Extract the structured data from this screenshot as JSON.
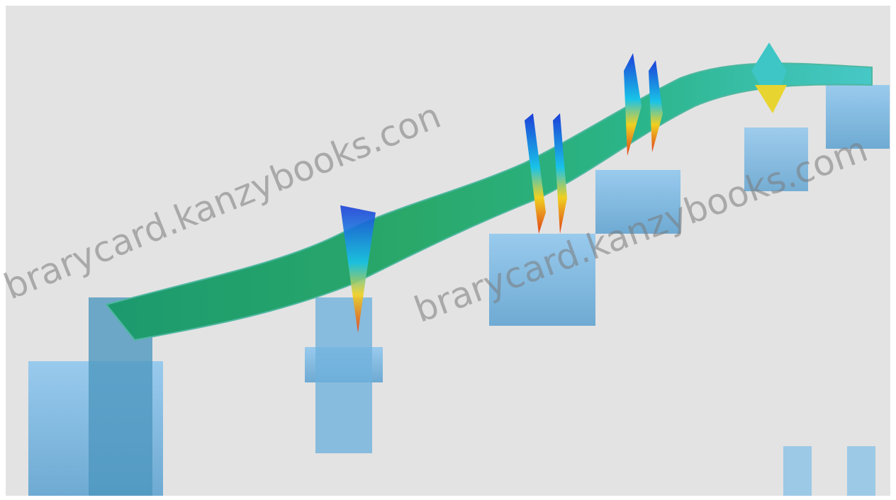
{
  "watermarks": [
    "brarycard.kanzybooks.con",
    "brarycard.kanzybooks.com"
  ]
}
